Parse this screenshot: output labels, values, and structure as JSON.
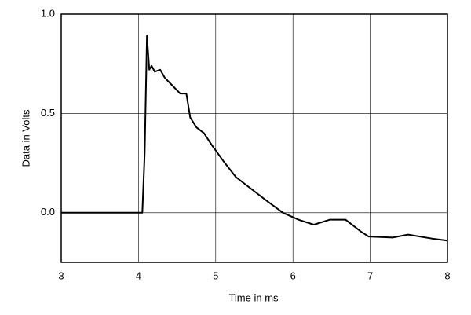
{
  "chart_data": {
    "type": "line",
    "x_label": "Time in ms",
    "y_label": "Data in Volts",
    "xlim": [
      3,
      8
    ],
    "xticks": [
      3,
      4,
      5,
      6,
      7,
      8
    ],
    "ylim": [
      -0.25,
      1.0
    ],
    "yticks": [
      {
        "value": 0,
        "label": "0.0"
      },
      {
        "value": 0.5,
        "label": "0.5"
      },
      {
        "value": 1.0,
        "label": "1.0"
      }
    ],
    "grid": true,
    "series": [
      {
        "color": "#000000",
        "x": [
          3,
          4.05,
          4.08,
          4.11,
          4.14,
          4.17,
          4.21,
          4.28,
          4.34,
          4.44,
          4.54,
          4.62,
          4.67,
          4.75,
          4.85,
          4.95,
          5.1,
          5.26,
          5.46,
          5.66,
          5.87,
          6.07,
          6.27,
          6.48,
          6.68,
          6.88,
          6.98,
          7.29,
          7.49,
          7.8,
          8.0
        ],
        "values": [
          0,
          0,
          0.3,
          0.89,
          0.72,
          0.74,
          0.71,
          0.72,
          0.68,
          0.64,
          0.6,
          0.6,
          0.48,
          0.43,
          0.4,
          0.34,
          0.26,
          0.18,
          0.12,
          0.06,
          0.0,
          -0.035,
          -0.06,
          -0.035,
          -0.035,
          -0.095,
          -0.12,
          -0.125,
          -0.11,
          -0.13,
          -0.14
        ]
      }
    ]
  }
}
